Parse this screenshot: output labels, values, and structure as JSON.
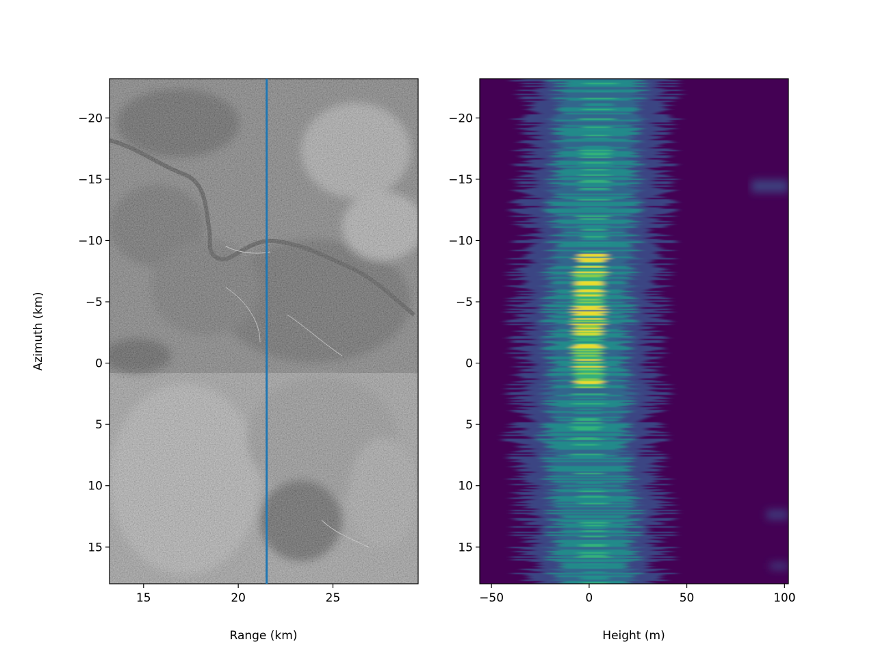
{
  "chart_data": [
    {
      "type": "heatmap",
      "colormap": "gray",
      "title": "",
      "xlabel": "Range (km)",
      "ylabel": "Azimuth (km)",
      "xlim": [
        13.2,
        29.5
      ],
      "ylim": [
        18.0,
        -23.2
      ],
      "y_inverted": true,
      "xticks": [
        15,
        20,
        25
      ],
      "xtick_labels": [
        "15",
        "20",
        "25"
      ],
      "yticks": [
        -20,
        -15,
        -10,
        -5,
        0,
        5,
        10,
        15
      ],
      "ytick_labels": [
        "−20",
        "−15",
        "−10",
        "−5",
        "0",
        "5",
        "10",
        "15"
      ],
      "overlay_line": {
        "orientation": "vertical",
        "x": 21.5,
        "color": "#1f77b4"
      }
    },
    {
      "type": "heatmap",
      "colormap": "viridis",
      "title": "",
      "xlabel": "Height (m)",
      "ylabel": "",
      "xlim": [
        -56,
        102
      ],
      "ylim": [
        18.0,
        -23.2
      ],
      "y_inverted": true,
      "xticks": [
        -50,
        0,
        50,
        100
      ],
      "xtick_labels": [
        "−50",
        "0",
        "50",
        "100"
      ],
      "yticks": [
        -20,
        -15,
        -10,
        -5,
        0,
        5,
        10,
        15
      ],
      "ytick_labels": [
        "−20",
        "−15",
        "−10",
        "−5",
        "0",
        "5",
        "10",
        "15"
      ],
      "profile_centerline": [
        {
          "azimuth": -23,
          "height": 6
        },
        {
          "azimuth": -20,
          "height": 4
        },
        {
          "azimuth": -15,
          "height": 3
        },
        {
          "azimuth": -12,
          "height": 2
        },
        {
          "azimuth": -10,
          "height": 3
        },
        {
          "azimuth": -7,
          "height": 0
        },
        {
          "azimuth": -4,
          "height": 0
        },
        {
          "azimuth": -1,
          "height": -1
        },
        {
          "azimuth": 1,
          "height": 0
        },
        {
          "azimuth": 3,
          "height": 0
        },
        {
          "azimuth": 6,
          "height": -2
        },
        {
          "azimuth": 9,
          "height": 0
        },
        {
          "azimuth": 12,
          "height": 3
        },
        {
          "azimuth": 15,
          "height": 2
        },
        {
          "azimuth": 18,
          "height": 3
        }
      ]
    }
  ]
}
